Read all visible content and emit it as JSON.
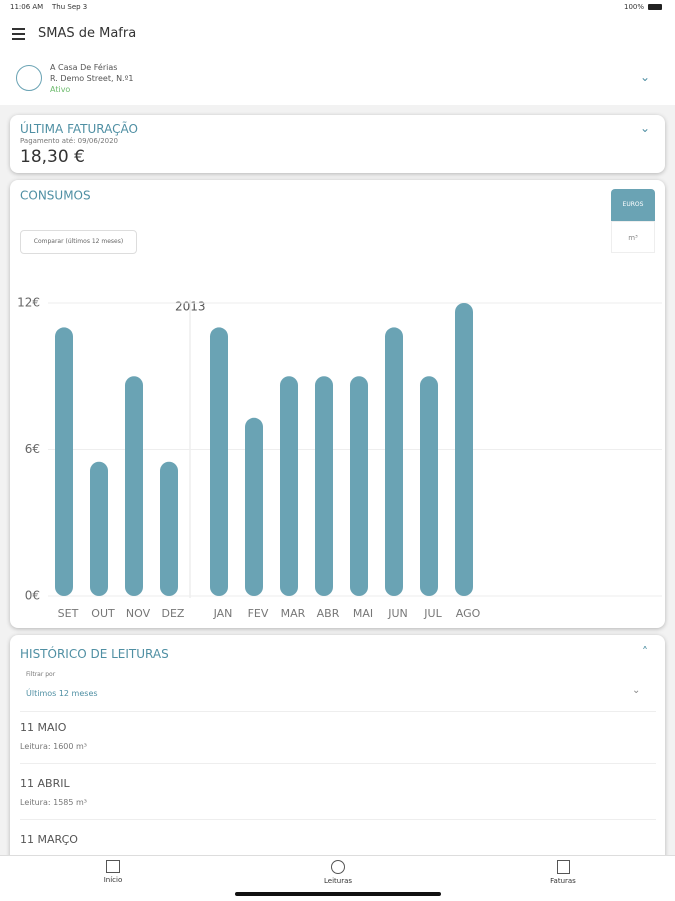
{
  "status_bar": {
    "time": "11:06 AM",
    "date": "Thu Sep 3",
    "battery": "100%"
  },
  "header": {
    "title": "SMAS de Mafra"
  },
  "account": {
    "name": "A Casa De Férias",
    "address": "R. Demo Street, N.º1",
    "status": "Ativo"
  },
  "billing": {
    "title": "ÚLTIMA FATURAÇÃO",
    "due": "Pagamento até: 09/06/2020",
    "amount": "18,30 €"
  },
  "consumos": {
    "compare": "Comparar (últimos 12 meses)",
    "units": [
      "EUROS",
      "m³"
    ]
  },
  "chart_data": {
    "type": "bar",
    "title": "CONSUMOS",
    "annotation": "2013",
    "categories": [
      "SET",
      "OUT",
      "NOV",
      "DEZ",
      "JAN",
      "FEV",
      "MAR",
      "ABR",
      "MAI",
      "JUN",
      "JUL",
      "AGO"
    ],
    "values": [
      11,
      5.5,
      9,
      5.5,
      11,
      7.3,
      9,
      9,
      9,
      11,
      9,
      12
    ],
    "color": "#6aa3b4",
    "ylim": [
      0,
      12
    ],
    "yticks": [
      {
        "value": 0,
        "label": "0€"
      },
      {
        "value": 6,
        "label": "6€"
      },
      {
        "value": 12,
        "label": "12€"
      }
    ],
    "grid": true
  },
  "history": {
    "title": "HISTÓRICO DE LEITURAS",
    "filter_label": "Filtrar por",
    "filter_value": "Últimos 12 meses",
    "entries": [
      {
        "date": "11 MAIO",
        "reading": "Leitura: 1600 m³"
      },
      {
        "date": "11 ABRIL",
        "reading": "Leitura: 1585 m³"
      },
      {
        "date": "11 MARÇO"
      }
    ]
  },
  "tabs": [
    "Início",
    "Leituras",
    "Faturas"
  ]
}
